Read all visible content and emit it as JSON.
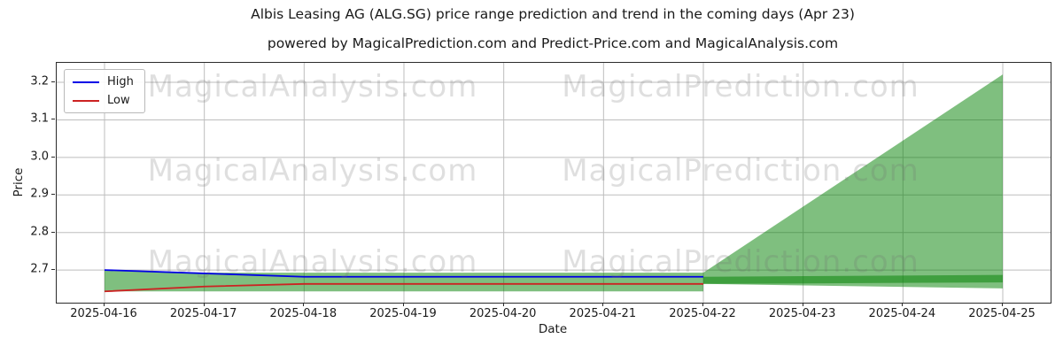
{
  "title": "Albis Leasing AG (ALG.SG) price range prediction and trend in the coming days (Apr 23)",
  "subtitle": "powered by MagicalPrediction.com and Predict-Price.com and MagicalAnalysis.com",
  "colors": {
    "high_line": "#0000e6",
    "low_line": "#cc2222",
    "band_fill": "#008000",
    "grid": "#bdbdbd",
    "spine": "#2b2b2b",
    "text": "#1a1a1a"
  },
  "legend": {
    "items": [
      {
        "label": "High"
      },
      {
        "label": "Low"
      }
    ]
  },
  "watermarks": {
    "left_text": "MagicalAnalysis.com",
    "right_text": "MagicalPrediction.com"
  },
  "chart_data": {
    "type": "line",
    "title": "Albis Leasing AG (ALG.SG) price range prediction and trend in the coming days (Apr 23)",
    "xlabel": "Date",
    "ylabel": "Price",
    "x": [
      "2025-04-16",
      "2025-04-17",
      "2025-04-18",
      "2025-04-19",
      "2025-04-20",
      "2025-04-21",
      "2025-04-22",
      "2025-04-23",
      "2025-04-24",
      "2025-04-25"
    ],
    "series": [
      {
        "name": "High",
        "color": "#0000e6",
        "values": [
          2.7,
          2.691,
          2.682,
          2.682,
          2.682,
          2.682,
          2.682,
          null,
          null,
          null
        ]
      },
      {
        "name": "Low",
        "color": "#cc2222",
        "values": [
          2.643,
          2.656,
          2.663,
          2.663,
          2.663,
          2.663,
          2.663,
          null,
          null,
          null
        ]
      }
    ],
    "bands": [
      {
        "name": "historical-high-low-range",
        "x_idx": [
          0,
          1,
          6
        ],
        "top": [
          2.7,
          2.693,
          2.693
        ],
        "bottom": [
          2.643,
          2.643,
          2.643
        ]
      },
      {
        "name": "prediction-cone",
        "x_idx": [
          6,
          9
        ],
        "top": [
          2.693,
          3.221
        ],
        "bottom": [
          2.663,
          2.651
        ]
      },
      {
        "name": "current-range-extension",
        "x_idx": [
          6,
          9
        ],
        "top": [
          2.682,
          2.687
        ],
        "bottom": [
          2.663,
          2.667
        ]
      }
    ],
    "band_opacity": 0.5,
    "yticks": [
      "2.7",
      "2.8",
      "2.9",
      "3.0",
      "3.1",
      "3.2"
    ],
    "ylim": [
      2.613,
      3.252
    ],
    "grid": true,
    "legend_position": "upper left"
  }
}
